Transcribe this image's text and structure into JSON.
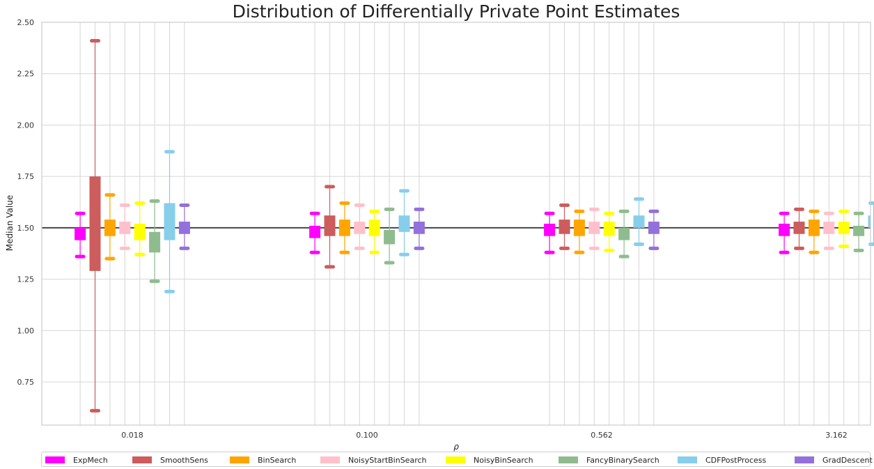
{
  "chart_data": {
    "type": "box",
    "title": "Distribution of Differentially Private Point Estimates",
    "xlabel": "ρ",
    "ylabel": "Median Value",
    "categories": [
      "0.018",
      "0.100",
      "0.562",
      "3.162"
    ],
    "ylim": [
      0.54,
      2.5
    ],
    "yticks": [
      "0.75",
      "1.00",
      "1.25",
      "1.50",
      "1.75",
      "2.00",
      "2.25",
      "2.50"
    ],
    "reference_line": 1.5,
    "grid": true,
    "legend_position": "bottom",
    "series": [
      {
        "name": "ExpMech",
        "color": "#ff00ff",
        "boxes": [
          {
            "whislo": 1.36,
            "q1": 1.44,
            "med": 1.5,
            "q3": 1.5,
            "whishi": 1.57
          },
          {
            "whislo": 1.38,
            "q1": 1.45,
            "med": 1.5,
            "q3": 1.51,
            "whishi": 1.57
          },
          {
            "whislo": 1.38,
            "q1": 1.46,
            "med": 1.5,
            "q3": 1.52,
            "whishi": 1.57
          },
          {
            "whislo": 1.38,
            "q1": 1.46,
            "med": 1.5,
            "q3": 1.52,
            "whishi": 1.57
          }
        ]
      },
      {
        "name": "SmoothSens",
        "color": "#cd5c5c",
        "boxes": [
          {
            "whislo": 0.61,
            "q1": 1.29,
            "med": 1.5,
            "q3": 1.75,
            "whishi": 2.41
          },
          {
            "whislo": 1.31,
            "q1": 1.46,
            "med": 1.5,
            "q3": 1.56,
            "whishi": 1.7
          },
          {
            "whislo": 1.4,
            "q1": 1.47,
            "med": 1.5,
            "q3": 1.54,
            "whishi": 1.61
          },
          {
            "whislo": 1.4,
            "q1": 1.47,
            "med": 1.5,
            "q3": 1.53,
            "whishi": 1.59
          }
        ]
      },
      {
        "name": "BinSearch",
        "color": "#ffa500",
        "boxes": [
          {
            "whislo": 1.35,
            "q1": 1.46,
            "med": 1.5,
            "q3": 1.54,
            "whishi": 1.66
          },
          {
            "whislo": 1.38,
            "q1": 1.46,
            "med": 1.5,
            "q3": 1.54,
            "whishi": 1.62
          },
          {
            "whislo": 1.38,
            "q1": 1.46,
            "med": 1.5,
            "q3": 1.54,
            "whishi": 1.58
          },
          {
            "whislo": 1.38,
            "q1": 1.46,
            "med": 1.5,
            "q3": 1.54,
            "whishi": 1.58
          }
        ]
      },
      {
        "name": "NoisyStartBinSearch",
        "color": "#ffc0cb",
        "boxes": [
          {
            "whislo": 1.4,
            "q1": 1.47,
            "med": 1.5,
            "q3": 1.53,
            "whishi": 1.61
          },
          {
            "whislo": 1.4,
            "q1": 1.47,
            "med": 1.5,
            "q3": 1.53,
            "whishi": 1.61
          },
          {
            "whislo": 1.4,
            "q1": 1.47,
            "med": 1.5,
            "q3": 1.53,
            "whishi": 1.59
          },
          {
            "whislo": 1.4,
            "q1": 1.47,
            "med": 1.5,
            "q3": 1.53,
            "whishi": 1.57
          }
        ]
      },
      {
        "name": "NoisyBinSearch",
        "color": "#ffff00",
        "boxes": [
          {
            "whislo": 1.37,
            "q1": 1.44,
            "med": 1.5,
            "q3": 1.52,
            "whishi": 1.62
          },
          {
            "whislo": 1.38,
            "q1": 1.46,
            "med": 1.5,
            "q3": 1.54,
            "whishi": 1.58
          },
          {
            "whislo": 1.39,
            "q1": 1.46,
            "med": 1.5,
            "q3": 1.53,
            "whishi": 1.57
          },
          {
            "whislo": 1.41,
            "q1": 1.47,
            "med": 1.5,
            "q3": 1.53,
            "whishi": 1.58
          }
        ]
      },
      {
        "name": "FancyBinarySearch",
        "color": "#8fbc8f",
        "boxes": [
          {
            "whislo": 1.24,
            "q1": 1.38,
            "med": 1.48,
            "q3": 1.48,
            "whishi": 1.63
          },
          {
            "whislo": 1.33,
            "q1": 1.42,
            "med": 1.49,
            "q3": 1.49,
            "whishi": 1.59
          },
          {
            "whislo": 1.36,
            "q1": 1.44,
            "med": 1.49,
            "q3": 1.5,
            "whishi": 1.58
          },
          {
            "whislo": 1.39,
            "q1": 1.46,
            "med": 1.5,
            "q3": 1.51,
            "whishi": 1.57
          }
        ]
      },
      {
        "name": "CDFPostProcess",
        "color": "#87ceeb",
        "boxes": [
          {
            "whislo": 1.19,
            "q1": 1.44,
            "med": 1.5,
            "q3": 1.62,
            "whishi": 1.87
          },
          {
            "whislo": 1.37,
            "q1": 1.48,
            "med": 1.5,
            "q3": 1.56,
            "whishi": 1.68
          },
          {
            "whislo": 1.42,
            "q1": 1.5,
            "med": 1.5,
            "q3": 1.56,
            "whishi": 1.64
          },
          {
            "whislo": 1.42,
            "q1": 1.5,
            "med": 1.5,
            "q3": 1.56,
            "whishi": 1.62
          }
        ]
      },
      {
        "name": "GradDescent",
        "color": "#9370db",
        "boxes": [
          {
            "whislo": 1.4,
            "q1": 1.47,
            "med": 1.5,
            "q3": 1.53,
            "whishi": 1.61
          },
          {
            "whislo": 1.4,
            "q1": 1.47,
            "med": 1.5,
            "q3": 1.53,
            "whishi": 1.59
          },
          {
            "whislo": 1.4,
            "q1": 1.47,
            "med": 1.5,
            "q3": 1.53,
            "whishi": 1.58
          },
          {
            "whislo": 1.4,
            "q1": 1.47,
            "med": 1.5,
            "q3": 1.53,
            "whishi": 1.58
          }
        ]
      }
    ]
  }
}
